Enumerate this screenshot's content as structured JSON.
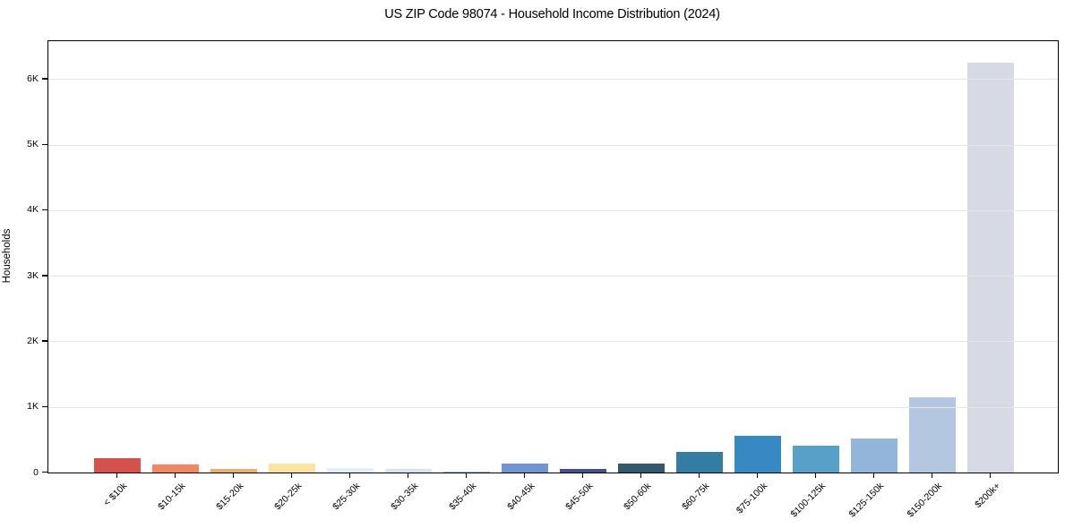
{
  "chart_data": {
    "type": "bar",
    "title": "US ZIP Code 98074 - Household Income Distribution (2024)",
    "xlabel": "",
    "ylabel": "Households",
    "categories": [
      "< $10k",
      "$10-15k",
      "$15-20k",
      "$20-25k",
      "$25-30k",
      "$30-35k",
      "$35-40k",
      "$40-45k",
      "$45-50k",
      "$50-60k",
      "$60-75k",
      "$75-100k",
      "$100-125k",
      "$125-150k",
      "$150-200k",
      "$200k+"
    ],
    "values": [
      220,
      125,
      60,
      140,
      70,
      50,
      20,
      140,
      55,
      140,
      315,
      565,
      405,
      520,
      1150,
      6250
    ],
    "bar_colors": [
      "#d5514e",
      "#f4875f",
      "#edb069",
      "#fce3a2",
      "#e3f0f7",
      "#d7e5ef",
      "#a3bcd3",
      "#6f94ce",
      "#474f94",
      "#33596f",
      "#337ca4",
      "#3789c1",
      "#57a0c8",
      "#92b5d9",
      "#b3c7e0",
      "#d7d9e5"
    ],
    "ylim": [
      0,
      6580
    ],
    "yticks": [
      {
        "value": 0,
        "label": "0"
      },
      {
        "value": 1000,
        "label": "1K"
      },
      {
        "value": 2000,
        "label": "2K"
      },
      {
        "value": 3000,
        "label": "3K"
      },
      {
        "value": 4000,
        "label": "4K"
      },
      {
        "value": 5000,
        "label": "5K"
      },
      {
        "value": 6000,
        "label": "6K"
      }
    ],
    "grid": "horizontal",
    "gridline_color": "#e6e6e6",
    "background": "#ffffff",
    "legend": "none"
  }
}
